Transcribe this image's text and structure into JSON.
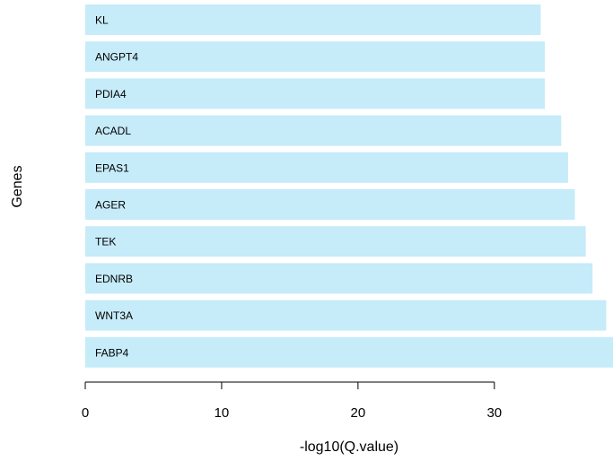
{
  "chart_data": {
    "type": "bar",
    "orientation": "horizontal",
    "categories": [
      "FABP4",
      "WNT3A",
      "EDNRB",
      "TEK",
      "AGER",
      "EPAS1",
      "ACADL",
      "PDIA4",
      "ANGPT4",
      "KL"
    ],
    "values": [
      38.7,
      38.2,
      37.2,
      36.7,
      35.9,
      35.4,
      34.9,
      33.7,
      33.7,
      33.4
    ],
    "xlabel": "-log10(Q.value)",
    "ylabel": "Genes",
    "xticks": [
      0,
      10,
      20,
      30
    ],
    "xlim": [
      0,
      38.7
    ],
    "bar_color": "#c6ebf9",
    "labels_inside_bars": true,
    "grid": false
  }
}
